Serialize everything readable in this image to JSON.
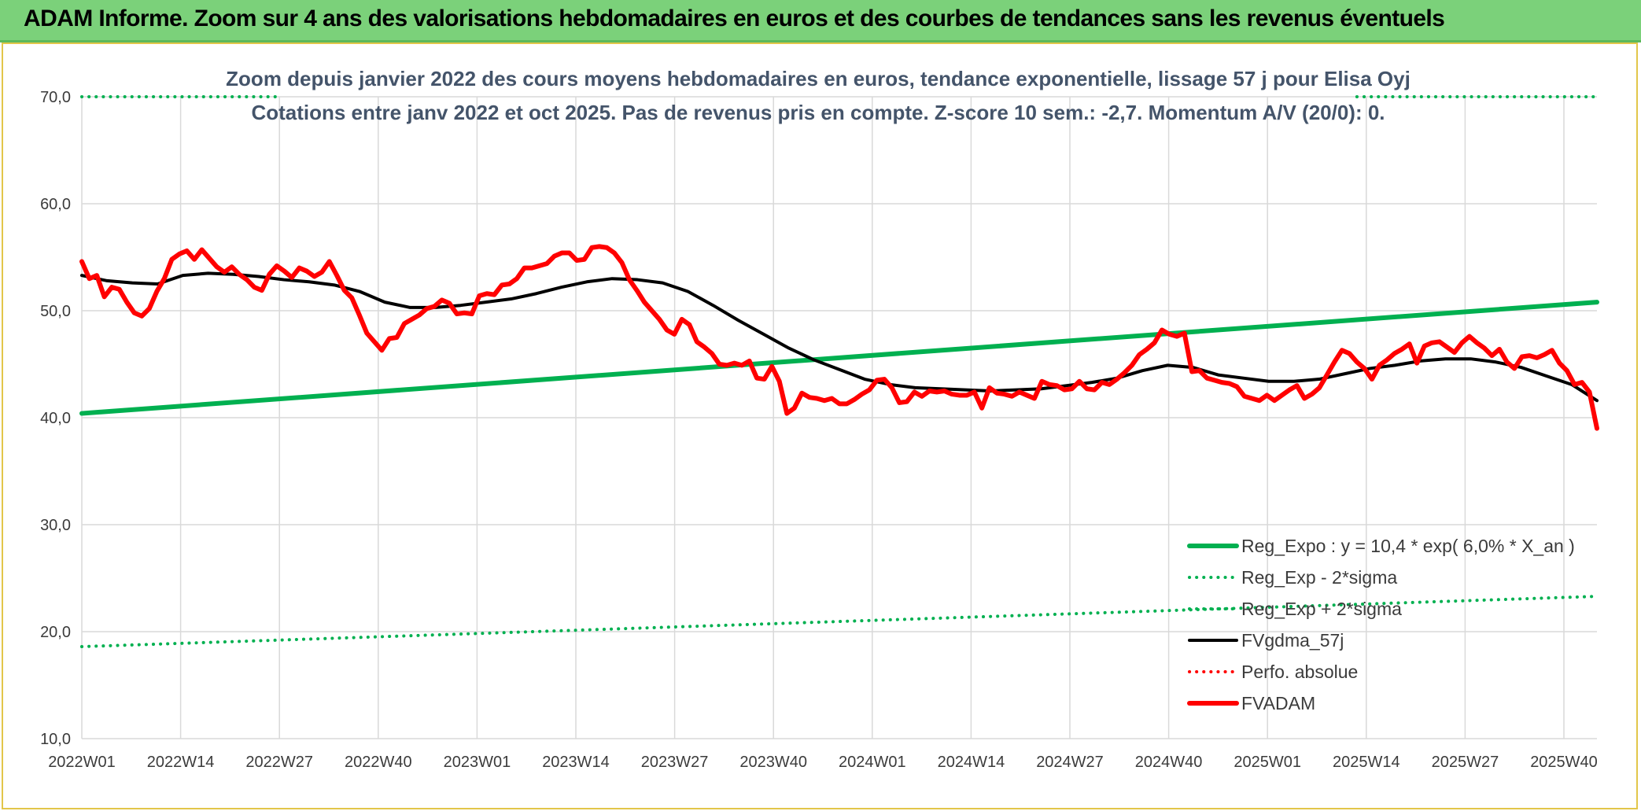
{
  "banner": {
    "title": "ADAM Informe. Zoom sur 4 ans des valorisations hebdomadaires en euros et des courbes de tendances sans les revenus éventuels"
  },
  "colors": {
    "banner_bg": "#7bd17a",
    "reg_expo": "#00b050",
    "fvgdma": "#000000",
    "fvadam": "#ff0000",
    "grid": "#d9d9d9"
  },
  "chart_data": {
    "type": "line",
    "subtitle_lines": [
      "Zoom depuis janvier 2022 des cours moyens hebdomadaires en euros, tendance exponentielle, lissage 57 j pour Elisa Oyj",
      "Cotations entre janv 2022 et oct 2025. Pas de revenus pris en compte. Z-score 10 sem.: -2,7. Momentum A/V (20/0): 0."
    ],
    "ylim": [
      10,
      70
    ],
    "y_ticks": [
      "10,0",
      "20,0",
      "30,0",
      "40,0",
      "50,0",
      "60,0",
      "70,0"
    ],
    "y_tick_values": [
      10,
      20,
      30,
      40,
      50,
      60,
      70
    ],
    "x_ticks": [
      "2022W01",
      "2022W14",
      "2022W27",
      "2022W40",
      "2023W01",
      "2023W14",
      "2023W27",
      "2023W40",
      "2024W01",
      "2024W14",
      "2024W27",
      "2024W40",
      "2025W01",
      "2025W14",
      "2025W27",
      "2025W40"
    ],
    "grid": true,
    "legend_position": "bottom-right",
    "series": [
      {
        "name": "Reg_Expo : y = 10,4 * exp( 6,0% *  X_an )",
        "style": "solid-thick",
        "color": "#00b050",
        "points": [
          [
            0,
            40.4
          ],
          [
            199,
            50.8
          ]
        ]
      },
      {
        "name": "Reg_Exp - 2*sigma",
        "style": "dotted",
        "color": "#00b050",
        "points": [
          [
            0,
            18.6
          ],
          [
            199,
            23.3
          ]
        ]
      },
      {
        "name": "Reg_Exp + 2*sigma",
        "style": "dotted",
        "color": "#00b050",
        "points": [
          [
            0,
            70.0
          ],
          [
            26,
            70.0
          ]
        ],
        "points_segment2": [
          [
            170,
            70.0
          ],
          [
            199,
            70.0
          ]
        ]
      },
      {
        "name": "FVgdma_57j",
        "style": "solid",
        "color": "#000000",
        "points": [
          [
            0,
            53.3
          ],
          [
            4,
            52.8
          ],
          [
            8,
            52.6
          ],
          [
            12,
            52.5
          ],
          [
            16,
            53.3
          ],
          [
            20,
            53.5
          ],
          [
            24,
            53.4
          ],
          [
            28,
            53.2
          ],
          [
            32,
            52.9
          ],
          [
            36,
            52.7
          ],
          [
            40,
            52.4
          ],
          [
            44,
            51.8
          ],
          [
            48,
            50.8
          ],
          [
            52,
            50.3
          ],
          [
            56,
            50.3
          ],
          [
            60,
            50.5
          ],
          [
            64,
            50.8
          ],
          [
            68,
            51.1
          ],
          [
            72,
            51.6
          ],
          [
            76,
            52.2
          ],
          [
            80,
            52.7
          ],
          [
            84,
            53.0
          ],
          [
            88,
            52.9
          ],
          [
            92,
            52.6
          ],
          [
            96,
            51.8
          ],
          [
            100,
            50.5
          ],
          [
            104,
            49.1
          ],
          [
            108,
            47.8
          ],
          [
            112,
            46.5
          ],
          [
            116,
            45.4
          ],
          [
            120,
            44.5
          ],
          [
            124,
            43.6
          ],
          [
            128,
            43.1
          ],
          [
            132,
            42.8
          ],
          [
            136,
            42.7
          ],
          [
            140,
            42.6
          ],
          [
            144,
            42.5
          ],
          [
            148,
            42.6
          ],
          [
            152,
            42.7
          ],
          [
            156,
            43.0
          ],
          [
            160,
            43.3
          ],
          [
            164,
            43.7
          ],
          [
            168,
            44.4
          ],
          [
            172,
            44.9
          ],
          [
            176,
            44.7
          ],
          [
            180,
            44.0
          ],
          [
            184,
            43.7
          ],
          [
            188,
            43.4
          ],
          [
            192,
            43.4
          ],
          [
            196,
            43.6
          ],
          [
            200,
            44.1
          ],
          [
            204,
            44.6
          ],
          [
            208,
            44.9
          ],
          [
            212,
            45.3
          ],
          [
            216,
            45.5
          ],
          [
            220,
            45.5
          ],
          [
            224,
            45.2
          ],
          [
            228,
            44.7
          ],
          [
            232,
            43.9
          ],
          [
            236,
            43.1
          ],
          [
            240,
            41.6
          ]
        ]
      },
      {
        "name": "Perfo. absolue",
        "style": "dotted",
        "color": "#ff0000",
        "points": []
      },
      {
        "name": "FVADAM",
        "style": "solid-thick",
        "color": "#ff0000",
        "points": [
          [
            0,
            54.6
          ],
          [
            1,
            53.0
          ],
          [
            2,
            53.3
          ],
          [
            3,
            51.3
          ],
          [
            4,
            52.2
          ],
          [
            5,
            52.0
          ],
          [
            6,
            50.8
          ],
          [
            7,
            49.8
          ],
          [
            8,
            49.5
          ],
          [
            9,
            50.2
          ],
          [
            10,
            51.8
          ],
          [
            11,
            53.0
          ],
          [
            12,
            54.8
          ],
          [
            13,
            55.3
          ],
          [
            14,
            55.6
          ],
          [
            15,
            54.8
          ],
          [
            16,
            55.7
          ],
          [
            17,
            54.9
          ],
          [
            18,
            54.1
          ],
          [
            19,
            53.6
          ],
          [
            20,
            54.1
          ],
          [
            21,
            53.4
          ],
          [
            22,
            52.9
          ],
          [
            23,
            52.2
          ],
          [
            24,
            51.9
          ],
          [
            25,
            53.4
          ],
          [
            26,
            54.2
          ],
          [
            27,
            53.7
          ],
          [
            28,
            53.1
          ],
          [
            29,
            54.0
          ],
          [
            30,
            53.7
          ],
          [
            31,
            53.2
          ],
          [
            32,
            53.6
          ],
          [
            33,
            54.6
          ],
          [
            34,
            53.3
          ],
          [
            35,
            51.9
          ],
          [
            36,
            51.2
          ],
          [
            37,
            49.6
          ],
          [
            38,
            47.9
          ],
          [
            39,
            47.1
          ],
          [
            40,
            46.3
          ],
          [
            41,
            47.4
          ],
          [
            42,
            47.5
          ],
          [
            43,
            48.8
          ],
          [
            44,
            49.2
          ],
          [
            45,
            49.6
          ],
          [
            46,
            50.2
          ],
          [
            47,
            50.4
          ],
          [
            48,
            51.0
          ],
          [
            49,
            50.7
          ],
          [
            50,
            49.7
          ],
          [
            51,
            49.8
          ],
          [
            52,
            49.7
          ],
          [
            53,
            51.4
          ],
          [
            54,
            51.6
          ],
          [
            55,
            51.5
          ],
          [
            56,
            52.4
          ],
          [
            57,
            52.5
          ],
          [
            58,
            53.0
          ],
          [
            59,
            54.0
          ],
          [
            60,
            54.0
          ],
          [
            61,
            54.2
          ],
          [
            62,
            54.4
          ],
          [
            63,
            55.1
          ],
          [
            64,
            55.4
          ],
          [
            65,
            55.4
          ],
          [
            66,
            54.7
          ],
          [
            67,
            54.8
          ],
          [
            68,
            55.9
          ],
          [
            69,
            56.0
          ],
          [
            70,
            55.9
          ],
          [
            71,
            55.4
          ],
          [
            72,
            54.5
          ],
          [
            73,
            52.9
          ],
          [
            74,
            51.9
          ],
          [
            75,
            50.8
          ],
          [
            76,
            50.0
          ],
          [
            77,
            49.2
          ],
          [
            78,
            48.2
          ],
          [
            79,
            47.8
          ],
          [
            80,
            49.2
          ],
          [
            81,
            48.7
          ],
          [
            82,
            47.1
          ],
          [
            83,
            46.6
          ],
          [
            84,
            46.0
          ],
          [
            85,
            45.0
          ],
          [
            86,
            44.9
          ],
          [
            87,
            45.1
          ],
          [
            88,
            44.9
          ],
          [
            89,
            45.3
          ],
          [
            90,
            43.7
          ],
          [
            91,
            43.6
          ],
          [
            92,
            44.8
          ],
          [
            93,
            43.4
          ],
          [
            94,
            40.4
          ],
          [
            95,
            40.9
          ],
          [
            96,
            42.3
          ],
          [
            97,
            41.9
          ],
          [
            98,
            41.8
          ],
          [
            99,
            41.6
          ],
          [
            100,
            41.8
          ],
          [
            101,
            41.3
          ],
          [
            102,
            41.3
          ],
          [
            103,
            41.7
          ],
          [
            104,
            42.2
          ],
          [
            105,
            42.6
          ],
          [
            106,
            43.5
          ],
          [
            107,
            43.6
          ],
          [
            108,
            42.8
          ],
          [
            109,
            41.4
          ],
          [
            110,
            41.5
          ],
          [
            111,
            42.4
          ],
          [
            112,
            42.0
          ],
          [
            113,
            42.5
          ],
          [
            114,
            42.4
          ],
          [
            115,
            42.5
          ],
          [
            116,
            42.2
          ],
          [
            117,
            42.1
          ],
          [
            118,
            42.1
          ],
          [
            119,
            42.4
          ],
          [
            120,
            40.9
          ],
          [
            121,
            42.8
          ],
          [
            122,
            42.3
          ],
          [
            123,
            42.2
          ],
          [
            124,
            42.0
          ],
          [
            125,
            42.4
          ],
          [
            126,
            42.1
          ],
          [
            127,
            41.8
          ],
          [
            128,
            43.4
          ],
          [
            129,
            43.1
          ],
          [
            130,
            43.0
          ],
          [
            131,
            42.6
          ],
          [
            132,
            42.7
          ],
          [
            133,
            43.4
          ],
          [
            134,
            42.7
          ],
          [
            135,
            42.6
          ],
          [
            136,
            43.3
          ],
          [
            137,
            43.1
          ],
          [
            138,
            43.6
          ],
          [
            139,
            44.2
          ],
          [
            140,
            44.9
          ],
          [
            141,
            45.9
          ],
          [
            142,
            46.4
          ],
          [
            143,
            47.0
          ],
          [
            144,
            48.2
          ],
          [
            145,
            47.8
          ],
          [
            146,
            47.6
          ],
          [
            147,
            47.9
          ],
          [
            148,
            44.3
          ],
          [
            149,
            44.4
          ],
          [
            150,
            43.7
          ],
          [
            151,
            43.5
          ],
          [
            152,
            43.3
          ],
          [
            153,
            43.2
          ],
          [
            154,
            42.9
          ],
          [
            155,
            42.0
          ],
          [
            156,
            41.8
          ],
          [
            157,
            41.6
          ],
          [
            158,
            42.1
          ],
          [
            159,
            41.6
          ],
          [
            160,
            42.1
          ],
          [
            161,
            42.6
          ],
          [
            162,
            43.0
          ],
          [
            163,
            41.8
          ],
          [
            164,
            42.2
          ],
          [
            165,
            42.8
          ],
          [
            166,
            44.0
          ],
          [
            167,
            45.2
          ],
          [
            168,
            46.3
          ],
          [
            169,
            46.0
          ],
          [
            170,
            45.2
          ],
          [
            171,
            44.6
          ],
          [
            172,
            43.6
          ],
          [
            173,
            44.9
          ],
          [
            174,
            45.4
          ],
          [
            175,
            46.0
          ],
          [
            176,
            46.4
          ],
          [
            177,
            46.9
          ],
          [
            178,
            45.1
          ],
          [
            179,
            46.7
          ],
          [
            180,
            47.0
          ],
          [
            181,
            47.1
          ],
          [
            182,
            46.6
          ],
          [
            183,
            46.1
          ],
          [
            184,
            47.0
          ],
          [
            185,
            47.6
          ],
          [
            186,
            47.0
          ],
          [
            187,
            46.5
          ],
          [
            188,
            45.8
          ],
          [
            189,
            46.4
          ],
          [
            190,
            45.2
          ],
          [
            191,
            44.6
          ],
          [
            192,
            45.7
          ],
          [
            193,
            45.8
          ],
          [
            194,
            45.6
          ],
          [
            195,
            45.9
          ],
          [
            196,
            46.3
          ],
          [
            197,
            45.1
          ],
          [
            198,
            44.4
          ],
          [
            199,
            43.1
          ],
          [
            200,
            43.3
          ],
          [
            201,
            42.4
          ],
          [
            202,
            39.0
          ]
        ]
      }
    ]
  }
}
